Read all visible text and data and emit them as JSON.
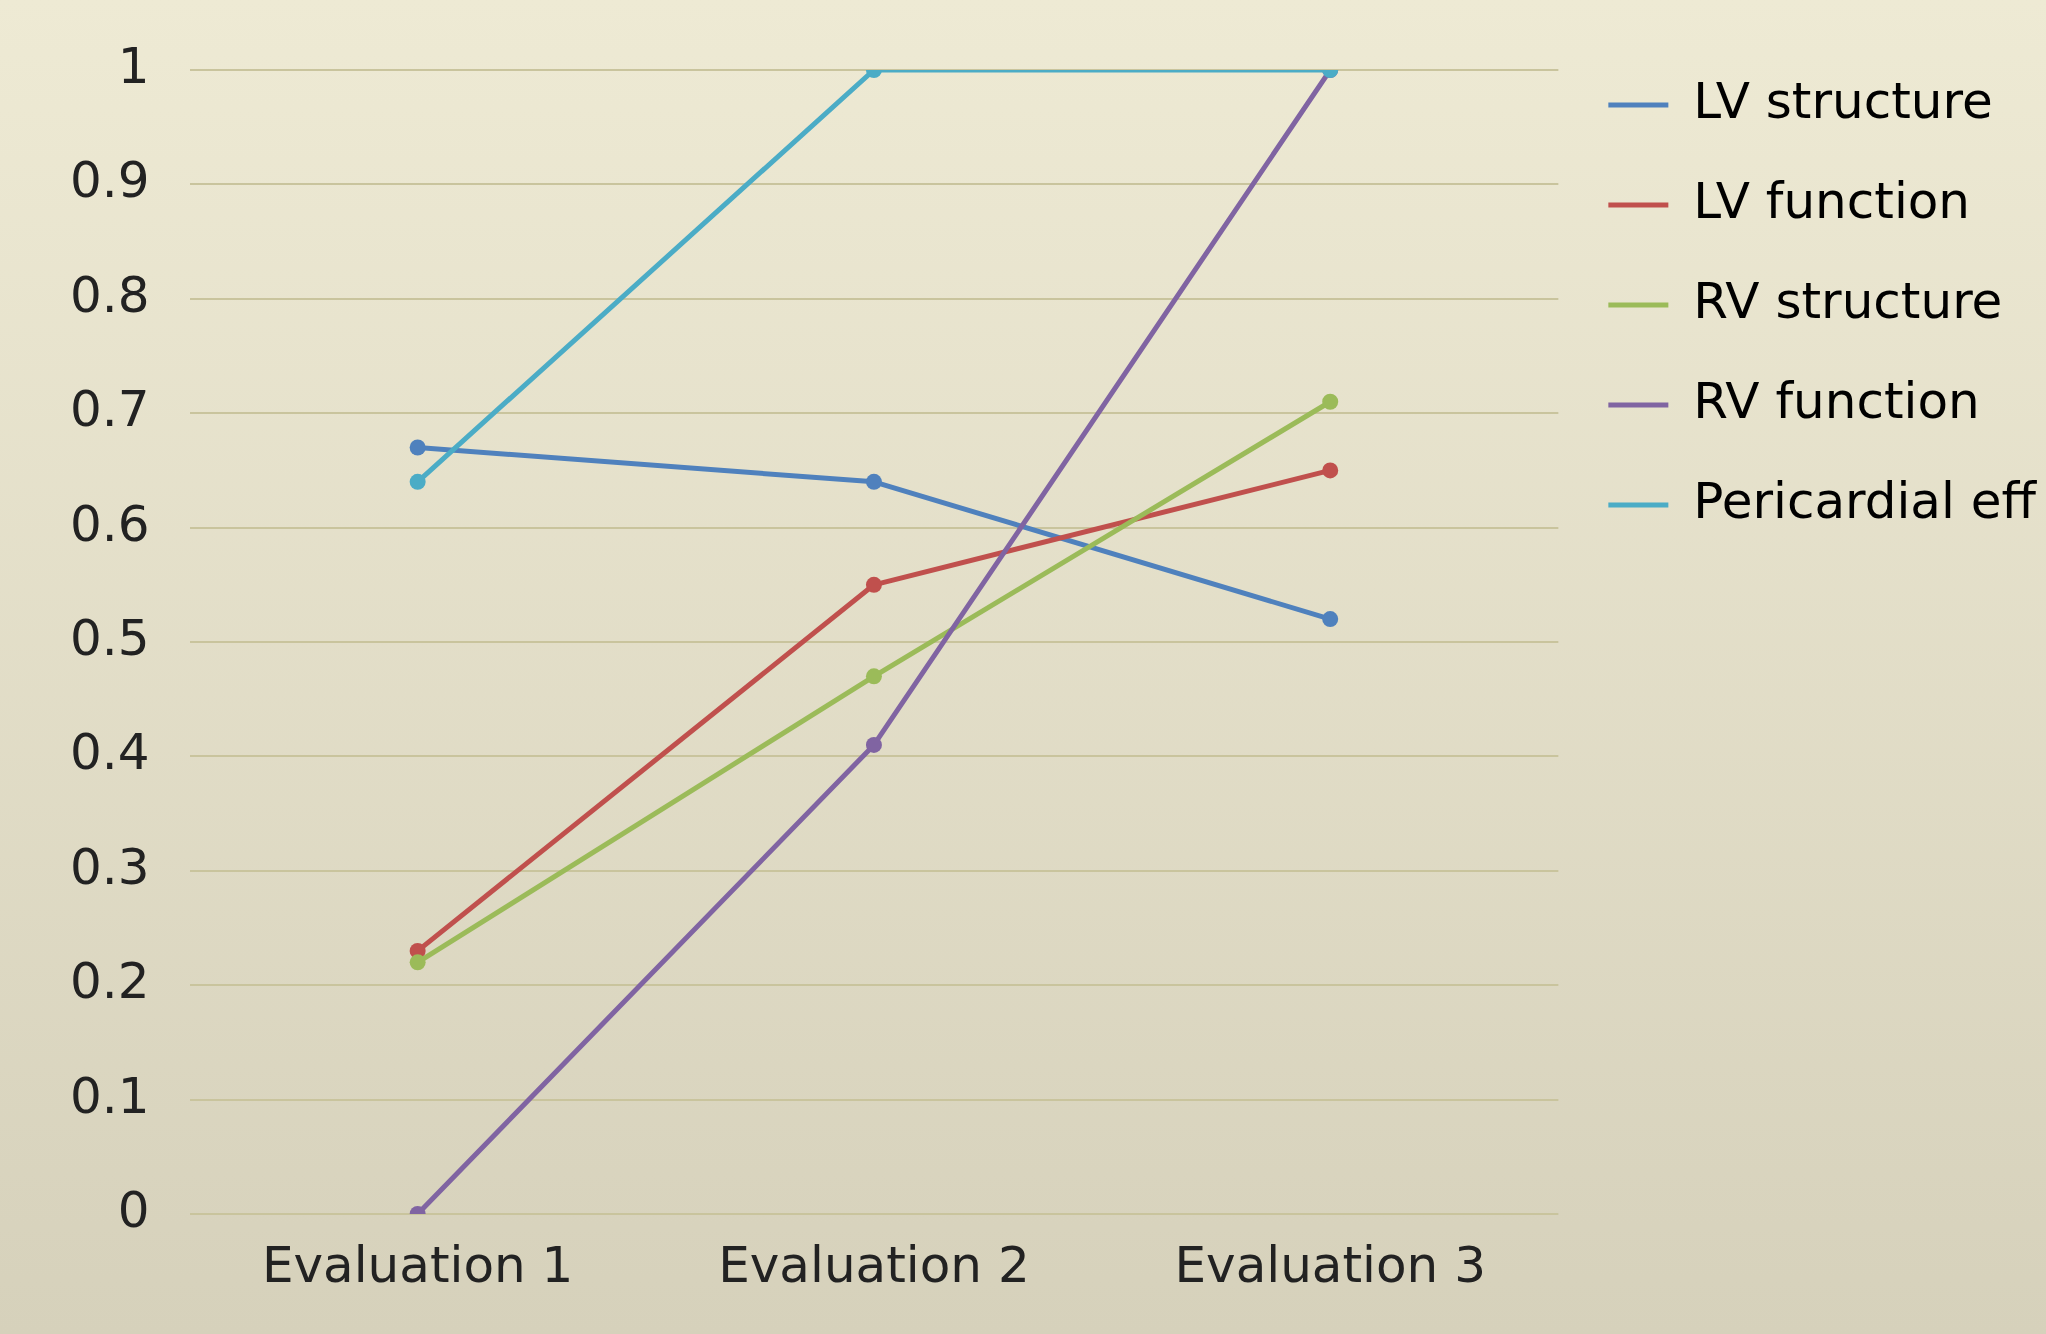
{
  "chart_data": {
    "type": "line",
    "categories": [
      "Evaluation 1",
      "Evaluation 2",
      "Evaluation 3"
    ],
    "series": [
      {
        "name": "LV structure",
        "color": "#4f81bd",
        "values": [
          0.67,
          0.64,
          0.52
        ]
      },
      {
        "name": "LV function",
        "color": "#c0504d",
        "values": [
          0.23,
          0.55,
          0.65
        ]
      },
      {
        "name": "RV structure",
        "color": "#9bbb59",
        "values": [
          0.22,
          0.47,
          0.71
        ]
      },
      {
        "name": "RV function",
        "color": "#8064a2",
        "values": [
          0,
          0.41,
          1
        ]
      },
      {
        "name": "Pericardial eff",
        "color": "#4bacc6",
        "values": [
          0.64,
          1,
          1
        ]
      }
    ],
    "ylim": [
      0,
      1
    ],
    "yticks": [
      0,
      0.1,
      0.2,
      0.3,
      0.4,
      0.5,
      0.6,
      0.7,
      0.8,
      0.9,
      1
    ],
    "grid": "y",
    "legend": "right",
    "marker": "circle",
    "line_style": "solid"
  }
}
